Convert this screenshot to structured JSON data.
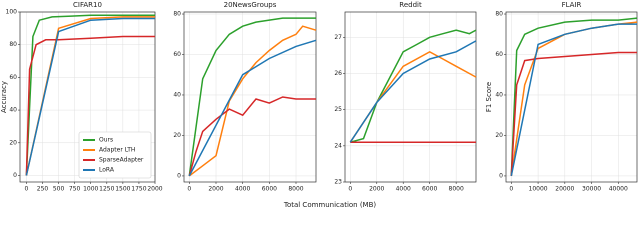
{
  "chart_data": [
    {
      "type": "line",
      "title": "CIFAR10",
      "ylabel": "Accuracy",
      "xlim": [
        -100,
        2000
      ],
      "xticks": [
        0,
        250,
        500,
        750,
        1000,
        1250,
        1500,
        1750,
        2000
      ],
      "ylim": [
        -4,
        100
      ],
      "yticks": [
        0,
        20,
        40,
        60,
        80,
        100
      ],
      "grid": true,
      "legend": "lower right",
      "series": [
        {
          "name": "Ours",
          "color": "#2ca02c",
          "x": [
            0,
            100,
            200,
            400,
            700,
            1000,
            1500,
            2000
          ],
          "values": [
            0,
            85,
            95,
            97,
            97.5,
            98,
            98,
            98
          ]
        },
        {
          "name": "Adapter LTH",
          "color": "#ff7f0e",
          "x": [
            0,
            500,
            1000,
            1500,
            2000
          ],
          "values": [
            0,
            90,
            96,
            97,
            97
          ]
        },
        {
          "name": "SparseAdapter",
          "color": "#d62728",
          "x": [
            0,
            50,
            150,
            300,
            500,
            1000,
            1500,
            2000
          ],
          "values": [
            0,
            65,
            80,
            83,
            83,
            84,
            85,
            85
          ]
        },
        {
          "name": "LoRA",
          "color": "#1f77b4",
          "x": [
            0,
            500,
            1000,
            1500,
            2000
          ],
          "values": [
            0,
            88,
            95,
            96,
            96
          ]
        }
      ]
    },
    {
      "type": "line",
      "title": "20NewsGroups",
      "xlim": [
        -400,
        9500
      ],
      "xticks": [
        0,
        2000,
        4000,
        6000,
        8000
      ],
      "ylim": [
        -3,
        81
      ],
      "yticks": [
        0,
        20,
        40,
        60,
        80
      ],
      "grid": true,
      "series": [
        {
          "color": "#2ca02c",
          "x": [
            0,
            1000,
            2000,
            3000,
            4000,
            5000,
            6000,
            7000,
            8000,
            9500
          ],
          "values": [
            0,
            48,
            62,
            70,
            74,
            76,
            77,
            78,
            78,
            78
          ]
        },
        {
          "color": "#ff7f0e",
          "x": [
            0,
            1000,
            2000,
            3000,
            4000,
            5000,
            6000,
            7000,
            8000,
            8500,
            9500
          ],
          "values": [
            0,
            5,
            10,
            37,
            48,
            56,
            62,
            67,
            70,
            74,
            72
          ]
        },
        {
          "color": "#d62728",
          "x": [
            0,
            500,
            1000,
            2000,
            3000,
            4000,
            5000,
            6000,
            7000,
            8000,
            9500
          ],
          "values": [
            0,
            12,
            22,
            28,
            33,
            30,
            38,
            36,
            39,
            38,
            38
          ]
        },
        {
          "color": "#1f77b4",
          "x": [
            0,
            4000,
            6000,
            8000,
            9500
          ],
          "values": [
            0,
            50,
            58,
            64,
            67
          ]
        }
      ]
    },
    {
      "type": "line",
      "title": "Reddit",
      "xlim": [
        -400,
        9500
      ],
      "xticks": [
        0,
        2000,
        4000,
        6000,
        8000
      ],
      "ylim": [
        23,
        27.7
      ],
      "yticks": [
        23,
        24,
        25,
        26,
        27
      ],
      "grid": true,
      "series": [
        {
          "color": "#2ca02c",
          "x": [
            0,
            1000,
            2000,
            3000,
            4000,
            5000,
            6000,
            7000,
            8000,
            9000,
            9500
          ],
          "values": [
            24.1,
            24.2,
            25.2,
            25.9,
            26.6,
            26.8,
            27.0,
            27.1,
            27.2,
            27.1,
            27.2
          ]
        },
        {
          "color": "#ff7f0e",
          "x": [
            0,
            2000,
            4000,
            6000,
            7000,
            8000,
            9000,
            9500
          ],
          "values": [
            24.1,
            25.2,
            26.2,
            26.6,
            26.4,
            26.2,
            26.0,
            25.9
          ]
        },
        {
          "color": "#d62728",
          "x": [
            0,
            9500
          ],
          "values": [
            24.1,
            24.1
          ]
        },
        {
          "color": "#1f77b4",
          "x": [
            0,
            2000,
            4000,
            6000,
            8000,
            9500
          ],
          "values": [
            24.1,
            25.2,
            26.0,
            26.4,
            26.6,
            26.9
          ]
        }
      ]
    },
    {
      "type": "line",
      "title": "FLAIR",
      "ylabel": "F1 Score",
      "xlim": [
        -2000,
        47000
      ],
      "xticks": [
        0,
        10000,
        20000,
        30000,
        40000
      ],
      "ylim": [
        -3,
        81
      ],
      "yticks": [
        0,
        20,
        40,
        60,
        80
      ],
      "grid": true,
      "series": [
        {
          "color": "#2ca02c",
          "x": [
            0,
            2000,
            5000,
            10000,
            20000,
            30000,
            40000,
            47000
          ],
          "values": [
            0,
            62,
            70,
            73,
            76,
            77,
            77,
            78
          ]
        },
        {
          "color": "#ff7f0e",
          "x": [
            0,
            5000,
            10000,
            20000,
            30000,
            40000,
            47000
          ],
          "values": [
            0,
            45,
            63,
            70,
            73,
            75,
            76
          ]
        },
        {
          "color": "#d62728",
          "x": [
            0,
            2000,
            5000,
            10000,
            20000,
            30000,
            40000,
            47000
          ],
          "values": [
            0,
            45,
            57,
            58,
            59,
            60,
            61,
            61
          ]
        },
        {
          "color": "#1f77b4",
          "x": [
            0,
            10000,
            20000,
            30000,
            40000,
            47000
          ],
          "values": [
            0,
            65,
            70,
            73,
            75,
            75
          ]
        }
      ]
    }
  ],
  "xlabel": "Total Communication (MB)"
}
